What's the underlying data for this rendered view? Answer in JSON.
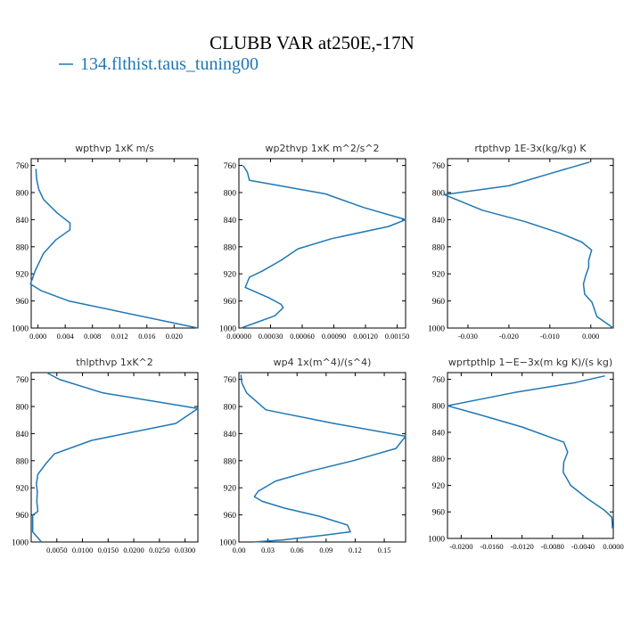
{
  "figure": {
    "title": "CLUBB VAR at250E,-17N",
    "legend_label": "134.flthist.taus_tuning00",
    "line_color": "#1f77b4"
  },
  "chart_data": [
    {
      "type": "line",
      "title": "wpthvp  1xK m/s",
      "ylim": [
        1000,
        750
      ],
      "xlim": [
        -0.001,
        0.0235
      ],
      "yticks": [
        760,
        800,
        840,
        880,
        920,
        960,
        1000
      ],
      "xticks": [
        0,
        0.004,
        0.008,
        0.012,
        0.016,
        0.02
      ],
      "xtick_labels": [
        "0.000",
        "0.004",
        "0.008",
        "0.012",
        "0.016",
        "0.020"
      ],
      "series": [
        {
          "x": [
            -0.0003,
            -0.0002,
            0.0001,
            0.0008,
            0.0028,
            0.0047,
            0.0047,
            0.0026,
            0.0008,
            -0.0004,
            -0.0011,
            0.0005,
            0.0045,
            0.0235
          ],
          "y": [
            765,
            780,
            795,
            810,
            830,
            845,
            855,
            870,
            890,
            915,
            935,
            945,
            960,
            1000
          ]
        }
      ]
    },
    {
      "type": "line",
      "title": "wp2thvp  1xK m^2/s^2",
      "ylim": [
        1000,
        750
      ],
      "xlim": [
        0,
        0.00158
      ],
      "yticks": [
        760,
        800,
        840,
        880,
        920,
        960,
        1000
      ],
      "xticks": [
        0,
        0.0003,
        0.0006,
        0.0009,
        0.0012,
        0.0015
      ],
      "xtick_labels": [
        "0.00000",
        "0.00030",
        "0.00060",
        "0.00090",
        "0.00120",
        "0.00150"
      ],
      "series": [
        {
          "x": [
            4e-05,
            8e-05,
            0.0001,
            0.00082,
            0.00118,
            0.00158,
            0.00142,
            0.00088,
            0.00056,
            0.0004,
            0.00022,
            0.0001,
            6e-05,
            0.00028,
            0.0004,
            0.00042,
            0.00034,
            2e-05
          ],
          "y": [
            760,
            770,
            782,
            802,
            822,
            840,
            850,
            868,
            883,
            900,
            916,
            925,
            940,
            955,
            965,
            970,
            982,
            1000
          ]
        }
      ]
    },
    {
      "type": "line",
      "title": "rtpthvp  1E-3x(kg/kg) K",
      "ylim": [
        1000,
        750
      ],
      "xlim": [
        -0.035,
        0.0055
      ],
      "yticks": [
        760,
        800,
        840,
        880,
        920,
        960,
        1000
      ],
      "xticks": [
        -0.03,
        -0.02,
        -0.01,
        0
      ],
      "xtick_labels": [
        "-0.030",
        "-0.020",
        "-0.010",
        "0.000"
      ],
      "series": [
        {
          "x": [
            -0.0003,
            -0.0088,
            -0.02,
            -0.0358,
            -0.033,
            -0.0265,
            -0.016,
            -0.0075,
            -0.0022,
            0.0002,
            -0.0005,
            -0.0005,
            -0.0012,
            -0.0018,
            -0.0015,
            0.0003,
            0.0015,
            0.0055
          ],
          "y": [
            755,
            770,
            790,
            803,
            810,
            826,
            843,
            860,
            873,
            885,
            900,
            910,
            922,
            935,
            950,
            962,
            983,
            1000
          ]
        }
      ]
    },
    {
      "type": "line",
      "title": "thlpthvp  1xK^2",
      "ylim": [
        1000,
        750
      ],
      "xlim": [
        0,
        0.0325
      ],
      "yticks": [
        760,
        800,
        840,
        880,
        920,
        960,
        1000
      ],
      "xticks": [
        0.005,
        0.01,
        0.015,
        0.02,
        0.025,
        0.03
      ],
      "xtick_labels": [
        "0.0050",
        "0.0100",
        "0.0150",
        "0.0200",
        "0.0250",
        "0.0300"
      ],
      "series": [
        {
          "x": [
            0.003,
            0.0055,
            0.014,
            0.0325,
            0.0282,
            0.0118,
            0.0045,
            0.003,
            0.0013,
            0.001,
            0.0012,
            0.0011,
            0.0013,
            0.0003,
            0.0003,
            0.002
          ],
          "y": [
            750,
            760,
            780,
            803,
            825,
            850,
            870,
            883,
            900,
            915,
            925,
            940,
            955,
            960,
            985,
            1000
          ]
        }
      ]
    },
    {
      "type": "line",
      "title": "wp4  1x(m^4)/(s^4)",
      "ylim": [
        1000,
        750
      ],
      "xlim": [
        0,
        0.172
      ],
      "yticks": [
        760,
        800,
        840,
        880,
        920,
        960,
        1000
      ],
      "xticks": [
        0,
        0.03,
        0.06,
        0.09,
        0.12,
        0.15
      ],
      "xtick_labels": [
        "0.00",
        "0.03",
        "0.06",
        "0.09",
        "0.12",
        "0.15"
      ],
      "series": [
        {
          "x": [
            0.002,
            0.003,
            0.008,
            0.028,
            0.098,
            0.172,
            0.162,
            0.118,
            0.075,
            0.038,
            0.02,
            0.016,
            0.024,
            0.047,
            0.083,
            0.112,
            0.115,
            0.088,
            0.045,
            0.015
          ],
          "y": [
            753,
            765,
            780,
            805,
            825,
            844,
            862,
            880,
            895,
            910,
            925,
            933,
            940,
            950,
            962,
            975,
            985,
            990,
            997,
            1000
          ]
        }
      ]
    },
    {
      "type": "line",
      "title": "wprtpthlp  1−E−3x(m kg K)/(s kg)",
      "ylim": [
        1000,
        750
      ],
      "xlim": [
        -0.0218,
        0
      ],
      "yticks": [
        760,
        800,
        840,
        880,
        920,
        960,
        1000
      ],
      "xticks": [
        -0.02,
        -0.016,
        -0.012,
        -0.008,
        -0.004,
        0
      ],
      "xtick_labels": [
        "-0.0200",
        "-0.0160",
        "-0.0120",
        "-0.0080",
        "-0.0040",
        "0.0000"
      ],
      "series": [
        {
          "x": [
            -0.0011,
            -0.005,
            -0.013,
            -0.0218,
            -0.018,
            -0.012,
            -0.0065,
            -0.006,
            -0.0065,
            -0.0066,
            -0.0056,
            -0.0034,
            -0.0011,
            -0.0002,
            -0.0001
          ],
          "y": [
            755,
            765,
            780,
            800,
            812,
            832,
            855,
            870,
            885,
            900,
            920,
            940,
            958,
            968,
            985
          ]
        }
      ]
    }
  ]
}
